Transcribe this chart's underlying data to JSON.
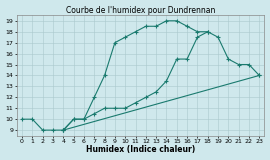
{
  "title": "Courbe de l'humidex pour Dundrennan",
  "xlabel": "Humidex (Indice chaleur)",
  "xlim": [
    -0.5,
    23.5
  ],
  "ylim": [
    8.5,
    19.5
  ],
  "xticks": [
    0,
    1,
    2,
    3,
    4,
    5,
    6,
    7,
    8,
    9,
    10,
    11,
    12,
    13,
    14,
    15,
    16,
    17,
    18,
    19,
    20,
    21,
    22,
    23
  ],
  "yticks": [
    9,
    10,
    11,
    12,
    13,
    14,
    15,
    16,
    17,
    18,
    19
  ],
  "line_color": "#1a7a6e",
  "bg_color": "#cfe8ec",
  "grid_color": "#aac8cc",
  "line1": {
    "x": [
      0,
      1,
      2,
      3,
      4,
      5,
      6,
      7,
      8,
      9,
      10,
      11,
      12,
      13,
      14,
      15,
      16,
      17,
      18
    ],
    "y": [
      10,
      10,
      9,
      9,
      9,
      10,
      10,
      12,
      14,
      17,
      17.5,
      18,
      18.5,
      18.5,
      19,
      19,
      18.5,
      18,
      18
    ]
  },
  "line2": {
    "x": [
      4,
      5,
      6,
      7,
      8,
      9,
      10,
      11,
      12,
      13,
      14,
      15,
      16,
      17,
      18,
      19,
      20,
      21,
      22,
      23
    ],
    "y": [
      9,
      10,
      10,
      10.5,
      11,
      11,
      11,
      11.5,
      12,
      12.5,
      13.5,
      15.5,
      15.5,
      17.5,
      18,
      17.5,
      15.5,
      15,
      15,
      14
    ]
  },
  "line3": {
    "x": [
      4,
      23
    ],
    "y": [
      9,
      14
    ]
  }
}
